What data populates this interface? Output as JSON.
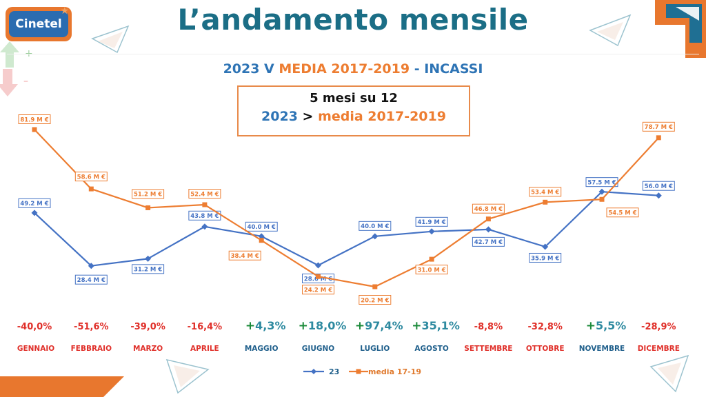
{
  "logo": {
    "text": "Cinetel"
  },
  "header": {
    "title": "L’andamento mensile"
  },
  "subtitle": {
    "part1": "2023 V ",
    "part2": "MEDIA 2017-2019",
    "part3": " - INCASSI"
  },
  "callout": {
    "line1": "5 mesi su 12",
    "line2_a": "2023",
    "line2_b": " > ",
    "line2_c": "media 2017-2019"
  },
  "colors": {
    "blue": "#4472c4",
    "orange": "#ed7d31",
    "title": "#1b6e86",
    "subtitle_blue": "#2e74b5",
    "negative": "#e0302a",
    "positive": "#1b8a3a",
    "teal": "#2e8aa0"
  },
  "chart_data": {
    "type": "line",
    "categories": [
      "GENNAIO",
      "FEBBRAIO",
      "MARZO",
      "APRILE",
      "MAGGIO",
      "GIUGNO",
      "LUGLIO",
      "AGOSTO",
      "SETTEMBRE",
      "OTTOBRE",
      "NOVEMBRE",
      "DICEMBRE"
    ],
    "series": [
      {
        "name": "23",
        "color": "#4472c4",
        "marker": "diamond",
        "values": [
          49.2,
          28.4,
          31.2,
          43.8,
          40.0,
          28.6,
          40.0,
          41.9,
          42.7,
          35.9,
          57.5,
          56.0
        ],
        "labels": [
          "49.2 M €",
          "28.4 M €",
          "31.2 M €",
          "43.8 M €",
          "40.0 M €",
          "28.6 M €",
          "40.0 M €",
          "41.9 M €",
          "42.7 M €",
          "35.9 M €",
          "57.5 M €",
          "56.0 M €"
        ]
      },
      {
        "name": "media 17-19",
        "color": "#ed7d31",
        "marker": "square",
        "values": [
          81.9,
          58.6,
          51.2,
          52.4,
          38.4,
          24.2,
          20.2,
          31.0,
          46.8,
          53.4,
          54.5,
          78.7
        ],
        "labels": [
          "81.9 M €",
          "58.6 M €",
          "51.2 M €",
          "52.4 M €",
          "38.4 M €",
          "24.2 M €",
          "20.2 M €",
          "31.0 M €",
          "46.8 M €",
          "53.4 M €",
          "54.5 M €",
          "78.7 M €"
        ]
      }
    ],
    "variations": [
      {
        "text": "-40,0%",
        "positive": false
      },
      {
        "text": "-51,6%",
        "positive": false
      },
      {
        "text": "-39,0%",
        "positive": false
      },
      {
        "text": "-16,4%",
        "positive": false
      },
      {
        "text": "4,3%",
        "positive": true
      },
      {
        "text": "18,0%",
        "positive": true
      },
      {
        "text": "97,4%",
        "positive": true
      },
      {
        "text": "35,1%",
        "positive": true
      },
      {
        "text": "-8,8%",
        "positive": false
      },
      {
        "text": "-32,8%",
        "positive": false
      },
      {
        "text": "5,5%",
        "positive": true
      },
      {
        "text": "-28,9%",
        "positive": false
      }
    ],
    "legend": {
      "position": "bottom"
    },
    "grid": false
  }
}
